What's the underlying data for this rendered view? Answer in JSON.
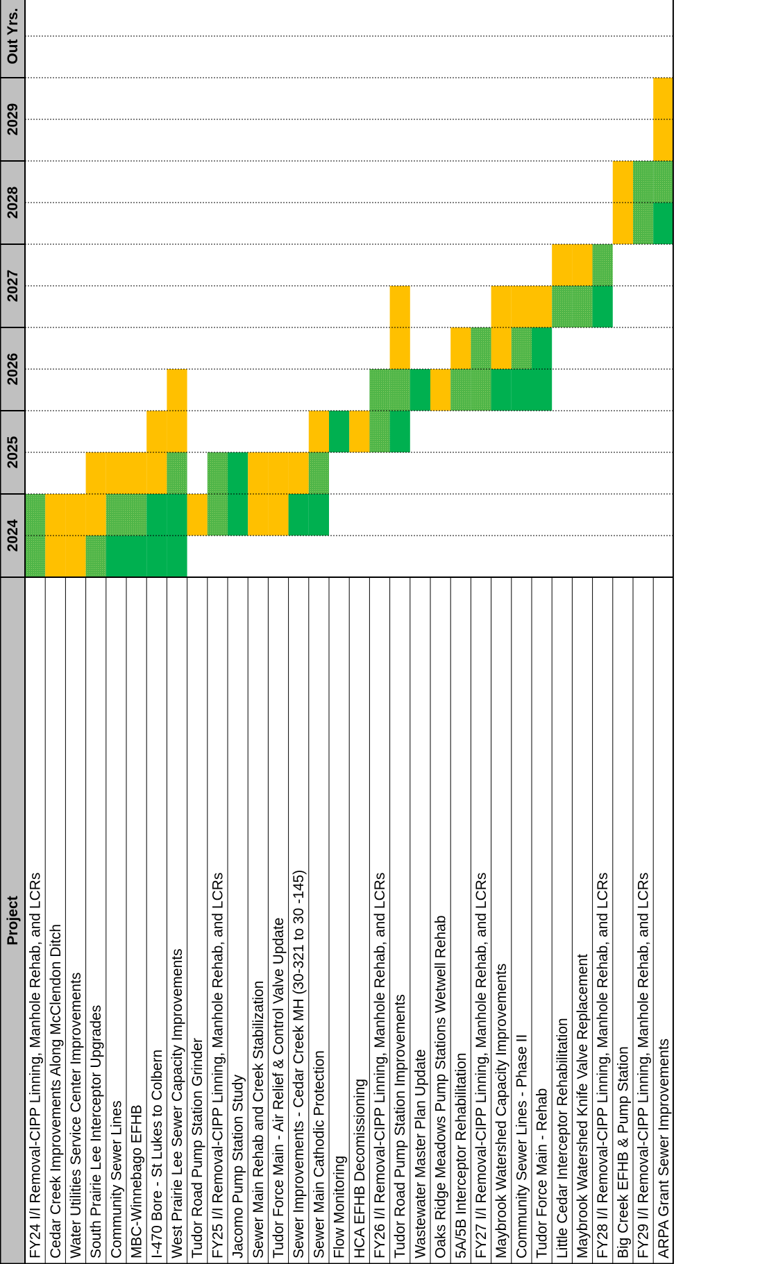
{
  "colors": {
    "design": "#FFC000",
    "bid": "#5DBB46",
    "construction": "#00B050",
    "header_bg": "#C0C0C0",
    "grid": "#000000"
  },
  "chart_data": {
    "type": "table",
    "header": {
      "project": "Project",
      "years": [
        "2024",
        "2025",
        "2026",
        "2027",
        "2028",
        "2029",
        "Out Yrs."
      ]
    },
    "arrow_text": "→",
    "periods_per_year": 2,
    "phase_legend": {
      "D": "design",
      "B": "bid",
      "C": "construction"
    },
    "projects": [
      {
        "name": "FY24 I/I Removal-CIPP Linning, Manhole Rehab, and LCRs",
        "cells": [
          "B",
          "B",
          "",
          "",
          "",
          "",
          "",
          "",
          "",
          "",
          "",
          "",
          "",
          ""
        ]
      },
      {
        "name": "Cedar Creek Improvements Along McClendon Ditch",
        "cells": [
          "D",
          "D",
          "",
          "",
          "",
          "",
          "",
          "",
          "",
          "",
          "",
          "",
          "",
          ""
        ]
      },
      {
        "name": "Water Utilities Service Center Improvements",
        "cells": [
          "D",
          "D",
          "",
          "",
          "",
          "",
          "",
          "",
          "",
          "",
          "",
          "",
          "",
          ""
        ]
      },
      {
        "name": "South Prairie Lee Interceptor Upgrades",
        "cells": [
          "B",
          "D",
          "D",
          "",
          "",
          "",
          "",
          "",
          "",
          "",
          "",
          "",
          "",
          ""
        ]
      },
      {
        "name": "Community Sewer Lines",
        "cells": [
          "C",
          "B",
          "D",
          "",
          "",
          "",
          "",
          "",
          "",
          "",
          "",
          "",
          "",
          ""
        ]
      },
      {
        "name": "MBC-Winnebago EFHB",
        "cells": [
          "C",
          "B",
          "D",
          "",
          "",
          "",
          "",
          "",
          "",
          "",
          "",
          "",
          "",
          ""
        ]
      },
      {
        "name": "I-470 Bore - St Lukes to Colbern",
        "cells": [
          "C",
          "C",
          "D",
          "D",
          "",
          "",
          "",
          "",
          "",
          "",
          "",
          "",
          "",
          ""
        ]
      },
      {
        "name": "West Prairie Lee Sewer Capacity Improvements",
        "cells": [
          "C",
          "C",
          "B",
          "D",
          "D",
          "",
          "",
          "",
          "",
          "",
          "",
          "",
          "",
          ""
        ]
      },
      {
        "name": "Tudor Road Pump Station Grinder",
        "cells": [
          "",
          "D",
          "",
          "",
          "",
          "",
          "",
          "",
          "",
          "",
          "",
          "",
          "",
          ""
        ]
      },
      {
        "name": "FY25 I/I Removal-CIPP Linning, Manhole Rehab, and LCRs",
        "cells": [
          "",
          "B",
          "B",
          "",
          "",
          "",
          "",
          "",
          "",
          "",
          "",
          "",
          "",
          ""
        ]
      },
      {
        "name": "Jacomo Pump Station Study",
        "cells": [
          "",
          "C",
          "C",
          "",
          "",
          "",
          "",
          "",
          "",
          "",
          "",
          "",
          "",
          ""
        ]
      },
      {
        "name": "Sewer Main Rehab and Creek Stabilization",
        "cells": [
          "",
          "D",
          "D",
          "",
          "",
          "",
          "",
          "",
          "",
          "",
          "",
          "",
          "",
          ""
        ]
      },
      {
        "name": "Tudor Force Main - Air Relief & Control Valve Update",
        "cells": [
          "",
          "D",
          "D",
          "",
          "",
          "",
          "",
          "",
          "",
          "",
          "",
          "",
          "",
          ""
        ]
      },
      {
        "name": "Sewer Improvements - Cedar Creek MH (30-321 to 30 -145)",
        "cells": [
          "",
          "C",
          "D",
          "",
          "",
          "",
          "",
          "",
          "",
          "",
          "",
          "",
          "",
          ""
        ]
      },
      {
        "name": "Sewer Main Cathodic Protection",
        "cells": [
          "",
          "C",
          "B",
          "D",
          "",
          "",
          "",
          "",
          "",
          "",
          "",
          "",
          "",
          ""
        ]
      },
      {
        "name": "Flow Monitoring",
        "cells": [
          "",
          "",
          "",
          "C",
          "",
          "",
          "",
          "",
          "",
          "",
          "",
          "",
          "",
          ""
        ]
      },
      {
        "name": "HCA EFHB Decomissioning",
        "cells": [
          "",
          "",
          "",
          "D",
          "",
          "",
          "",
          "",
          "",
          "",
          "",
          "",
          "",
          ""
        ]
      },
      {
        "name": "FY26 I/I Removal-CIPP Linning, Manhole Rehab, and LCRs",
        "cells": [
          "",
          "",
          "",
          "B",
          "B",
          "",
          "",
          "",
          "",
          "",
          "",
          "",
          "",
          ""
        ]
      },
      {
        "name": "Tudor Road Pump Station Improvements",
        "cells": [
          "",
          "",
          "",
          "C",
          "B",
          "D",
          "D",
          "",
          "",
          "",
          "",
          "",
          "",
          ""
        ]
      },
      {
        "name": "Wastewater Master Plan Update",
        "cells": [
          "",
          "",
          "",
          "",
          "C",
          "",
          "",
          "",
          "",
          "",
          "",
          "",
          "",
          ""
        ]
      },
      {
        "name": "Oaks Ridge Meadows Pump Stations Wetwell Rehab",
        "cells": [
          "",
          "",
          "",
          "",
          "D",
          "",
          "",
          "",
          "",
          "",
          "",
          "",
          "",
          ""
        ]
      },
      {
        "name": "5A/5B Interceptor Rehabilitation",
        "cells": [
          "",
          "",
          "",
          "",
          "B",
          "D",
          "",
          "",
          "",
          "",
          "",
          "",
          "",
          ""
        ]
      },
      {
        "name": "FY27 I/I Removal-CIPP Linning, Manhole Rehab, and LCRs",
        "cells": [
          "",
          "",
          "",
          "",
          "B",
          "B",
          "",
          "",
          "",
          "",
          "",
          "",
          "",
          ""
        ]
      },
      {
        "name": "Maybrook Watershed Capacity Improvements",
        "cells": [
          "",
          "",
          "",
          "",
          "C",
          "D",
          "D",
          "",
          "",
          "",
          "",
          "",
          "",
          ""
        ]
      },
      {
        "name": "Community Sewer Lines - Phase II",
        "cells": [
          "",
          "",
          "",
          "",
          "C",
          "B",
          "D",
          "",
          "",
          "",
          "",
          "",
          "",
          ""
        ]
      },
      {
        "name": "Tudor Force Main - Rehab",
        "cells": [
          "",
          "",
          "",
          "",
          "C",
          "C",
          "D",
          "",
          "",
          "",
          "",
          "",
          "",
          ""
        ]
      },
      {
        "name": "Little Cedar Interceptor Rehabilitation",
        "cells": [
          "",
          "",
          "",
          "",
          "",
          "",
          "B",
          "D",
          "",
          "",
          "",
          "",
          "",
          ""
        ]
      },
      {
        "name": "Maybrook Watershed Knife Valve Replacement",
        "cells": [
          "",
          "",
          "",
          "",
          "",
          "",
          "B",
          "D",
          "",
          "",
          "",
          "",
          "",
          ""
        ]
      },
      {
        "name": "FY28 I/I Removal-CIPP Linning, Manhole Rehab, and LCRs",
        "cells": [
          "",
          "",
          "",
          "",
          "",
          "",
          "C",
          "B",
          "",
          "",
          "",
          "",
          "",
          ""
        ]
      },
      {
        "name": "Big Creek EFHB & Pump Station",
        "cells": [
          "",
          "",
          "",
          "",
          "",
          "",
          "",
          "",
          "D",
          "D",
          "",
          "",
          "",
          ""
        ]
      },
      {
        "name": "FY29 I/I Removal-CIPP Linning, Manhole Rehab, and LCRs",
        "cells": [
          "",
          "",
          "",
          "",
          "",
          "",
          "",
          "",
          "B",
          "B",
          "",
          "",
          "",
          ""
        ]
      },
      {
        "name": "ARPA Grant Sewer Improvements",
        "cells": [
          "",
          "",
          "",
          "",
          "",
          "",
          "",
          "",
          "C",
          "B",
          "D",
          "D",
          "",
          ""
        ]
      }
    ]
  }
}
